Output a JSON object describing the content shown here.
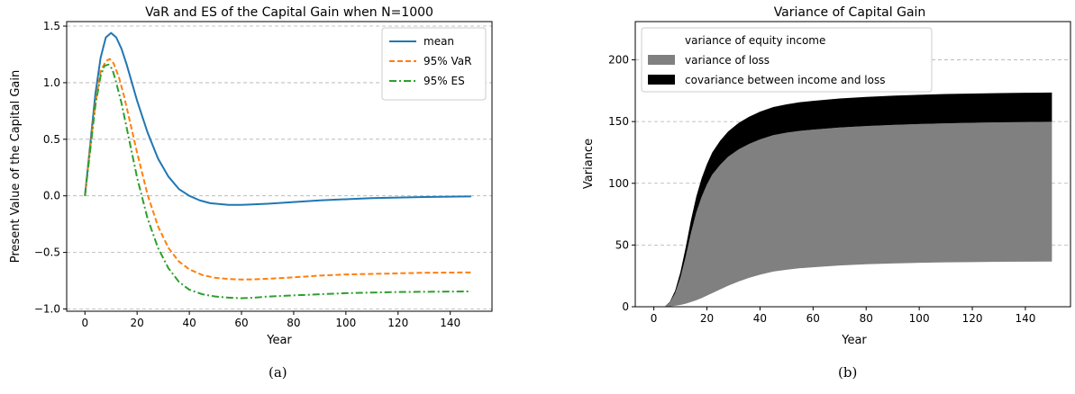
{
  "chart_data": [
    {
      "type": "line",
      "title": "VaR and ES of the Capital Gain when N=1000",
      "xlabel": "Year",
      "ylabel": "Present Value of the Capital Gain",
      "panel_label": "(a)",
      "xlim": [
        -7,
        156
      ],
      "ylim": [
        -1.02,
        1.54
      ],
      "xticks": [
        0,
        20,
        40,
        60,
        80,
        100,
        120,
        140
      ],
      "yticks": [
        -1.0,
        -0.5,
        0.0,
        0.5,
        1.0,
        1.5
      ],
      "ytick_labels": [
        "−1.0",
        "−0.5",
        "0.0",
        "0.5",
        "1.0",
        "1.5"
      ],
      "grid": "y-dashed",
      "legend": "top-right",
      "series": [
        {
          "name": "mean",
          "color": "#1f77b4",
          "dash": "solid",
          "x": [
            0,
            2,
            4,
            6,
            8,
            10,
            12,
            14,
            16,
            18,
            20,
            24,
            28,
            32,
            36,
            40,
            44,
            48,
            55,
            60,
            70,
            80,
            90,
            100,
            110,
            120,
            130,
            140,
            148
          ],
          "y": [
            0,
            0.45,
            0.9,
            1.22,
            1.4,
            1.44,
            1.4,
            1.3,
            1.16,
            1.0,
            0.84,
            0.56,
            0.33,
            0.17,
            0.06,
            0.0,
            -0.04,
            -0.065,
            -0.08,
            -0.08,
            -0.07,
            -0.055,
            -0.04,
            -0.03,
            -0.02,
            -0.015,
            -0.01,
            -0.007,
            -0.005
          ]
        },
        {
          "name": "95% VaR",
          "color": "#ff7f0e",
          "dash": "dashed",
          "x": [
            0,
            2,
            4,
            6,
            8,
            9.5,
            11,
            13,
            15,
            17,
            20,
            24,
            28,
            32,
            36,
            40,
            45,
            50,
            55,
            60,
            65,
            70,
            80,
            90,
            100,
            110,
            120,
            130,
            140,
            148
          ],
          "y": [
            0,
            0.42,
            0.82,
            1.1,
            1.19,
            1.21,
            1.17,
            1.05,
            0.88,
            0.68,
            0.38,
            0.01,
            -0.27,
            -0.46,
            -0.58,
            -0.65,
            -0.7,
            -0.725,
            -0.735,
            -0.74,
            -0.738,
            -0.733,
            -0.72,
            -0.705,
            -0.695,
            -0.69,
            -0.685,
            -0.68,
            -0.678,
            -0.677
          ]
        },
        {
          "name": "95% ES",
          "color": "#2ca02c",
          "dash": "dashdot",
          "x": [
            0,
            2,
            4,
            6,
            7.5,
            9,
            10.5,
            12,
            14,
            16,
            18,
            20,
            24,
            28,
            32,
            36,
            40,
            45,
            50,
            55,
            60,
            65,
            70,
            80,
            90,
            100,
            110,
            120,
            130,
            140,
            148
          ],
          "y": [
            0,
            0.4,
            0.8,
            1.06,
            1.15,
            1.16,
            1.12,
            1.0,
            0.82,
            0.6,
            0.38,
            0.16,
            -0.2,
            -0.46,
            -0.64,
            -0.76,
            -0.83,
            -0.87,
            -0.89,
            -0.9,
            -0.905,
            -0.9,
            -0.89,
            -0.88,
            -0.87,
            -0.86,
            -0.855,
            -0.85,
            -0.848,
            -0.846,
            -0.845
          ]
        }
      ]
    },
    {
      "type": "area",
      "title": "Variance of Capital Gain",
      "xlabel": "Year",
      "ylabel": "Variance",
      "panel_label": "(b)",
      "xlim": [
        -7,
        157
      ],
      "ylim": [
        0,
        231
      ],
      "xticks": [
        0,
        20,
        40,
        60,
        80,
        100,
        120,
        140
      ],
      "yticks": [
        0,
        50,
        100,
        150,
        200
      ],
      "grid": "y-dashed",
      "legend": "top-left",
      "x": [
        4,
        6,
        8,
        10,
        12,
        14,
        16,
        18,
        20,
        22,
        25,
        28,
        32,
        36,
        40,
        45,
        50,
        55,
        60,
        70,
        80,
        90,
        100,
        110,
        120,
        130,
        140,
        150
      ],
      "series": [
        {
          "name": "variance of equity income",
          "color": "#ffffff",
          "values": [
            0,
            0.3,
            0.8,
            1.5,
            2.5,
            3.8,
            5.3,
            7,
            9,
            11,
            14,
            17,
            20.5,
            23.5,
            26,
            28.5,
            30,
            31.2,
            32,
            33.4,
            34.4,
            35.1,
            35.6,
            36,
            36.2,
            36.4,
            36.5,
            36.6
          ]
        },
        {
          "name": "variance of loss",
          "color": "#808080",
          "values": [
            0,
            3,
            10,
            22,
            38,
            56,
            71,
            82,
            90,
            96,
            101,
            104.5,
            107,
            108.5,
            109.5,
            110.5,
            111,
            111.3,
            111.5,
            111.8,
            112,
            112.2,
            112.4,
            112.6,
            112.8,
            113,
            113.1,
            113.2
          ]
        },
        {
          "name": "covariance between income and loss",
          "color": "#000000",
          "values": [
            0,
            0.5,
            2,
            4.5,
            7.5,
            10.5,
            13,
            15,
            16.5,
            18,
            19.5,
            20.5,
            21.5,
            22,
            22.5,
            22.8,
            23,
            23.2,
            23.3,
            23.5,
            23.6,
            23.7,
            23.7,
            23.7,
            23.7,
            23.7,
            23.7,
            23.7
          ]
        }
      ]
    }
  ]
}
